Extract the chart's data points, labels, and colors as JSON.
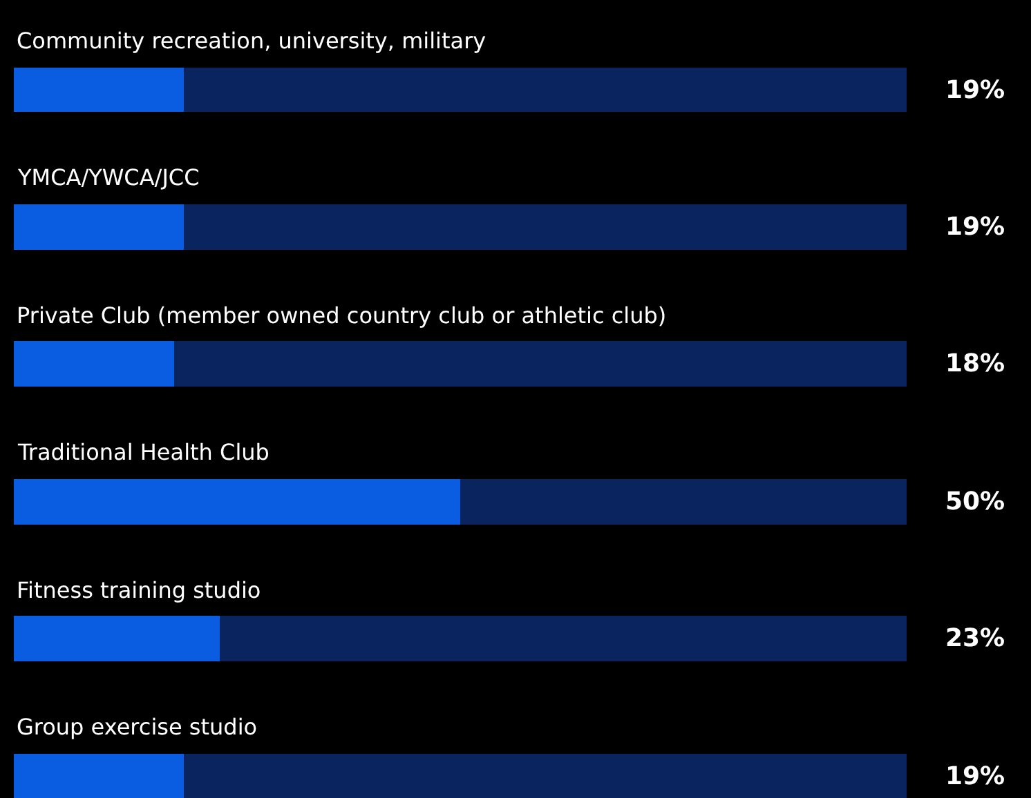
{
  "chart_data": {
    "type": "bar",
    "orientation": "horizontal",
    "stacked": true,
    "categories": [
      "Community recreation, university, military",
      "YMCA/YWCA/JCC",
      "Private Club (member owned country club or athletic club)",
      "Traditional Health Club",
      "Fitness training studio",
      "Group exercise studio"
    ],
    "series": [
      {
        "color": "#0a5ce0",
        "values": [
          19,
          19,
          18,
          50,
          23,
          19
        ],
        "value_labels": [
          "19%",
          "19%",
          "18%",
          "50%",
          "23%",
          "19%"
        ]
      },
      {
        "color": "#0a2460",
        "values": [
          81,
          81,
          82,
          50,
          77,
          81
        ]
      }
    ],
    "xlim": [
      0,
      100
    ],
    "tick_labels": false,
    "grid": false
  }
}
